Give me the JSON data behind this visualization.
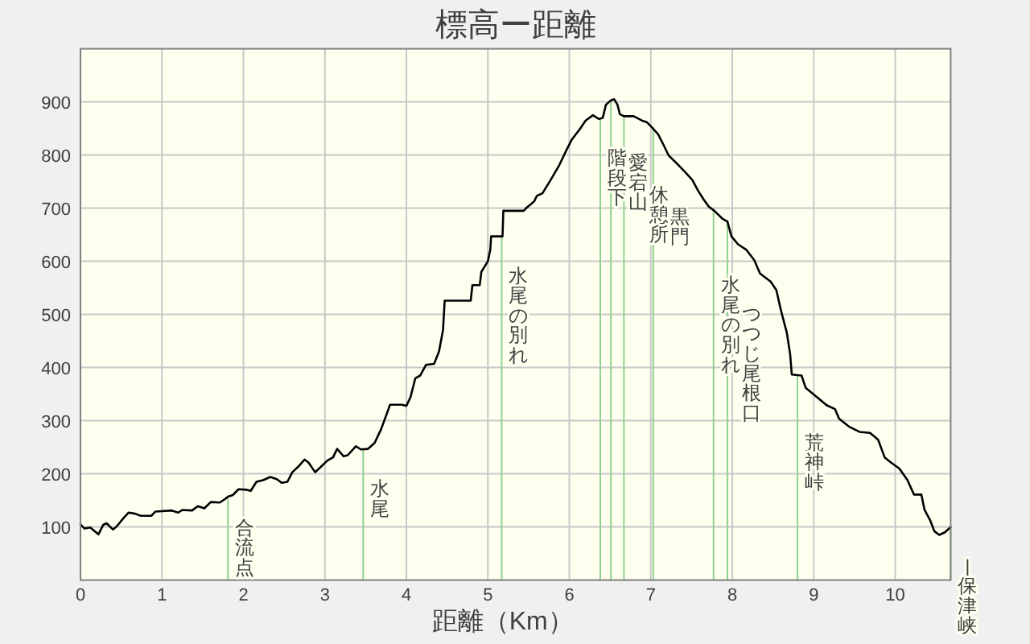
{
  "chart_data": {
    "type": "line",
    "title": "標高ー距離",
    "xlabel": "距離（Km）",
    "color": "#000000",
    "x": [
      0,
      0.05,
      0.12,
      0.22,
      0.28,
      0.32,
      0.4,
      0.45,
      0.53,
      0.59,
      0.67,
      0.74,
      0.87,
      0.92,
      1.12,
      1.2,
      1.25,
      1.37,
      1.44,
      1.52,
      1.6,
      1.71,
      1.77,
      1.81,
      1.87,
      1.94,
      2.04,
      2.09,
      2.16,
      2.24,
      2.33,
      2.41,
      2.47,
      2.54,
      2.6,
      2.67,
      2.75,
      2.8,
      2.88,
      2.95,
      3.03,
      3.1,
      3.15,
      3.23,
      3.28,
      3.38,
      3.44,
      3.53,
      3.61,
      3.69,
      3.8,
      3.94,
      4.0,
      4.05,
      4.11,
      4.17,
      4.24,
      4.34,
      4.4,
      4.45,
      4.47,
      4.79,
      4.81,
      4.9,
      4.92,
      5.0,
      5.03,
      5.04,
      5.18,
      5.19,
      5.44,
      5.47,
      5.57,
      5.6,
      5.67,
      5.77,
      5.87,
      5.97,
      6.03,
      6.13,
      6.2,
      6.29,
      6.36,
      6.41,
      6.45,
      6.51,
      6.55,
      6.59,
      6.62,
      6.67,
      6.79,
      6.89,
      6.95,
      7.02,
      7.09,
      7.15,
      7.22,
      7.32,
      7.42,
      7.51,
      7.58,
      7.65,
      7.71,
      7.78,
      7.88,
      7.94,
      7.99,
      8.07,
      8.17,
      8.27,
      8.34,
      8.47,
      8.54,
      8.6,
      8.67,
      8.71,
      8.73,
      8.85,
      8.9,
      9.16,
      9.26,
      9.31,
      9.43,
      9.56,
      9.69,
      9.79,
      9.87,
      9.95,
      10.05,
      10.15,
      10.23,
      10.32,
      10.36,
      10.43,
      10.48,
      10.54,
      10.61,
      10.68
    ],
    "values": [
      105,
      97,
      99,
      86,
      104,
      107,
      95,
      102,
      117,
      127,
      125,
      121,
      121,
      129,
      131,
      127,
      132,
      131,
      139,
      135,
      147,
      146,
      152,
      157,
      160,
      171,
      170,
      168,
      185,
      188,
      194,
      190,
      183,
      185,
      203,
      213,
      227,
      221,
      203,
      213,
      225,
      231,
      247,
      233,
      235,
      252,
      246,
      247,
      258,
      284,
      330,
      330,
      328,
      344,
      380,
      385,
      405,
      407,
      430,
      471,
      526,
      526,
      555,
      555,
      580,
      600,
      622,
      647,
      647,
      695,
      695,
      700,
      713,
      723,
      728,
      753,
      779,
      811,
      829,
      849,
      865,
      875,
      868,
      870,
      895,
      903,
      905,
      895,
      877,
      873,
      873,
      865,
      862,
      851,
      839,
      821,
      799,
      784,
      768,
      753,
      733,
      716,
      703,
      695,
      680,
      675,
      647,
      632,
      622,
      602,
      577,
      562,
      546,
      506,
      465,
      425,
      387,
      385,
      362,
      329,
      322,
      304,
      289,
      279,
      277,
      264,
      231,
      221,
      210,
      188,
      161,
      161,
      132,
      112,
      92,
      85,
      90,
      100
    ],
    "xlim": [
      0,
      10.68
    ],
    "xticks": [
      0,
      1,
      2,
      3,
      4,
      5,
      6,
      7,
      8,
      9,
      10
    ],
    "ylim": [
      0,
      1000
    ],
    "yticks": [
      100,
      200,
      300,
      400,
      500,
      600,
      700,
      800,
      900
    ],
    "grid": true,
    "ref_lines": [
      {
        "axis": "x",
        "value": 1.81,
        "label": "合流点",
        "color": "#8fd18f"
      },
      {
        "axis": "x",
        "value": 3.47,
        "label": "水尾",
        "color": "#8fd18f"
      },
      {
        "axis": "x",
        "value": 5.17,
        "label": "水尾の別れ",
        "color": "#8fd18f"
      },
      {
        "axis": "x",
        "value": 6.38,
        "label": "階段下",
        "color": "#8fd18f"
      },
      {
        "axis": "x",
        "value": 6.51,
        "label": "愛宕山",
        "color": "#8fd18f"
      },
      {
        "axis": "x",
        "value": 6.67,
        "label": "休憩所",
        "color": "#8fd18f"
      },
      {
        "axis": "x",
        "value": 7.03,
        "label": "黒門",
        "color": "#8fd18f"
      },
      {
        "axis": "x",
        "value": 7.77,
        "label": "水尾の別れ",
        "color": "#8fd18f"
      },
      {
        "axis": "x",
        "value": 7.94,
        "label": "つつじ尾根口",
        "color": "#8fd18f"
      },
      {
        "axis": "x",
        "value": 8.8,
        "label": "荒神峠",
        "color": "#8fd18f"
      },
      {
        "axis": "x",
        "value": 10.68,
        "label": "|保津峡",
        "color": "#8fd18f"
      }
    ]
  }
}
